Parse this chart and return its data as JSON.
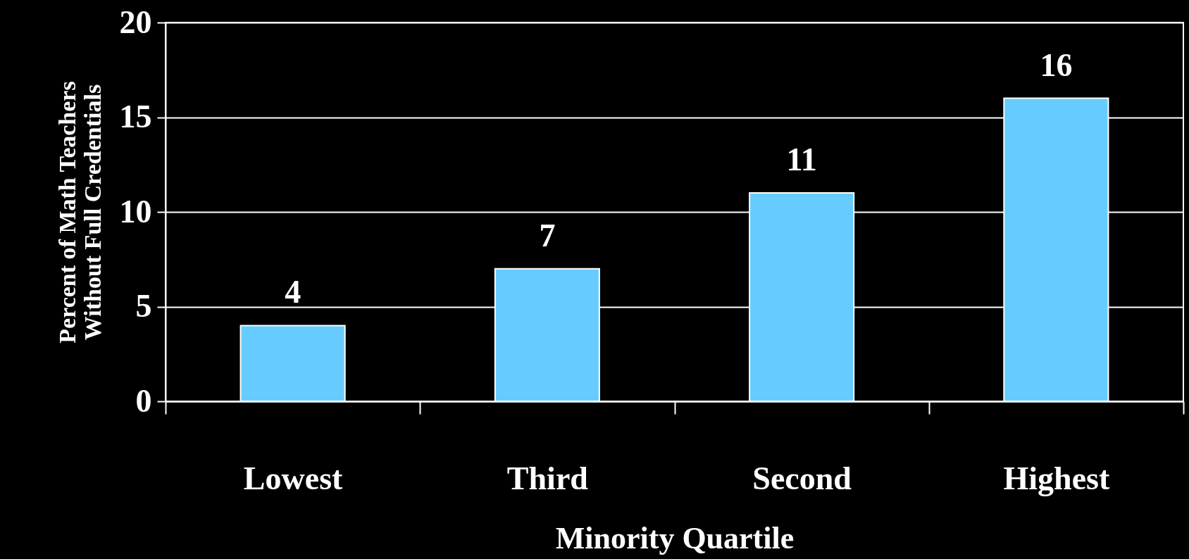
{
  "chart_data": {
    "type": "bar",
    "xlabel": "Minority Quartile",
    "ylabel": "Percent of Math Teachers\nWithout Full Credentials",
    "categories": [
      "Lowest",
      "Third",
      "Second",
      "Highest"
    ],
    "values": [
      4,
      7,
      11,
      16
    ],
    "color": "#66ccff",
    "data_labels": true,
    "ylim": [
      0,
      20
    ],
    "yticks": [
      0,
      5,
      10,
      15,
      20
    ],
    "grid": "y"
  }
}
